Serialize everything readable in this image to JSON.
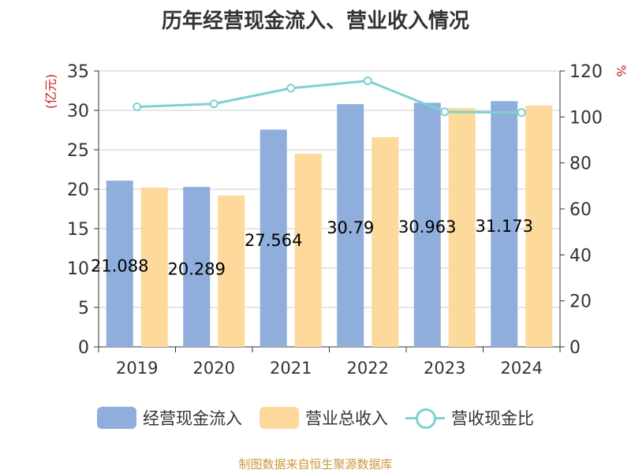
{
  "chart_data": {
    "type": "bar",
    "title": "历年经营现金流入、营业收入情况",
    "categories": [
      "2019",
      "2020",
      "2021",
      "2022",
      "2023",
      "2024"
    ],
    "y_left": {
      "label": "(亿元)",
      "ylim": [
        0,
        35
      ],
      "ticks": [
        0,
        5,
        10,
        15,
        20,
        25,
        30,
        35
      ]
    },
    "y_right": {
      "label": "%",
      "ylim": [
        0,
        120
      ],
      "ticks": [
        0,
        20,
        40,
        60,
        80,
        100,
        120
      ]
    },
    "series": [
      {
        "name": "经营现金流入",
        "type": "bar",
        "axis": "left",
        "color": "#8faedb",
        "values": [
          21.088,
          20.289,
          27.564,
          30.79,
          30.963,
          31.173
        ],
        "data_labels": [
          "21.088",
          "20.289",
          "27.564",
          "30.79",
          "30.963",
          "31.173"
        ]
      },
      {
        "name": "营业总收入",
        "type": "bar",
        "axis": "left",
        "color": "#fdd99b",
        "values": [
          20.2,
          19.2,
          24.5,
          26.6,
          30.3,
          30.6
        ]
      },
      {
        "name": "营收现金比",
        "type": "line",
        "axis": "right",
        "color": "#7fd0d0",
        "values": [
          104.4,
          105.7,
          112.5,
          115.7,
          102.2,
          101.9
        ]
      }
    ],
    "grid": true,
    "legend_position": "bottom"
  },
  "source": "制图数据来自恒生聚源数据库"
}
